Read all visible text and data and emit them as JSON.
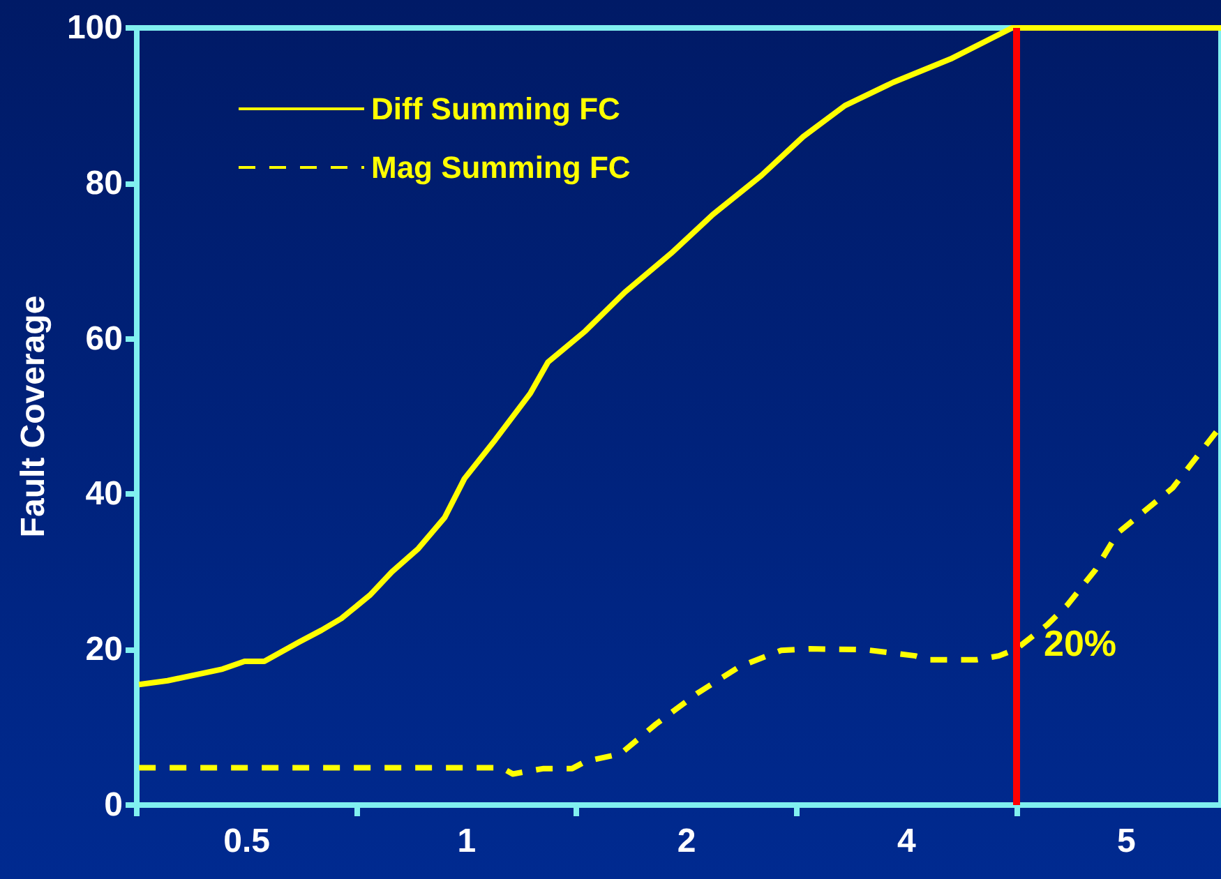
{
  "chart_data": {
    "type": "line",
    "ylabel": "Fault Coverage",
    "xlim": [
      0,
      4.93
    ],
    "xticks": [
      {
        "value": 0,
        "label": null
      },
      {
        "value": 0.5,
        "label": "0.5"
      },
      {
        "value": 1,
        "label": null
      },
      {
        "value": 1.5,
        "label": "1"
      },
      {
        "value": 2,
        "label": null
      },
      {
        "value": 2.5,
        "label": "2"
      },
      {
        "value": 3,
        "label": null
      },
      {
        "value": 3.5,
        "label": "4"
      },
      {
        "value": 4,
        "label": null
      },
      {
        "value": 4.5,
        "label": "5"
      }
    ],
    "ylim": [
      0,
      100
    ],
    "yticks": [
      0,
      20,
      40,
      60,
      80,
      100
    ],
    "grid": false,
    "legend": "top left",
    "marker": "none",
    "series": [
      {
        "name": "Diff Summing FC",
        "color": "#ffff00",
        "line_style": "solid",
        "x": [
          0.01,
          0.14,
          0.39,
          0.49,
          0.58,
          0.74,
          0.84,
          0.93,
          1.06,
          1.16,
          1.28,
          1.4,
          1.49,
          1.63,
          1.79,
          1.87,
          2.04,
          2.22,
          2.43,
          2.62,
          2.84,
          3.03,
          3.22,
          3.44,
          3.7,
          3.98,
          4.32,
          4.93
        ],
        "values": [
          15.5,
          16,
          17.5,
          18.5,
          18.5,
          21,
          22.5,
          24,
          27,
          30,
          33,
          37,
          42,
          47,
          53,
          57,
          61,
          66,
          71,
          76,
          81,
          86,
          90,
          93,
          96,
          100,
          100,
          100
        ]
      },
      {
        "name": "Mag Summing FC",
        "color": "#ffff00",
        "line_style": "dashed",
        "x": [
          0.01,
          0.97,
          1.66,
          1.71,
          1.85,
          1.98,
          2.04,
          2.2,
          2.36,
          2.55,
          2.74,
          2.93,
          3.06,
          3.31,
          3.54,
          3.6,
          3.82,
          3.92,
          4.0,
          4.14,
          4.23,
          4.36,
          4.46,
          4.71,
          4.93
        ],
        "values": [
          4.8,
          4.8,
          4.8,
          4.0,
          4.7,
          4.7,
          5.6,
          6.6,
          10.4,
          14.4,
          17.8,
          19.9,
          20.1,
          20,
          19.2,
          18.7,
          18.7,
          19.2,
          20.1,
          23.2,
          25.7,
          30.3,
          35,
          40.8,
          48.8
        ]
      }
    ],
    "ref_lines": [
      {
        "axis": "x",
        "value": 4,
        "color": "#ff0000"
      }
    ],
    "annotations": [
      "20%"
    ]
  }
}
